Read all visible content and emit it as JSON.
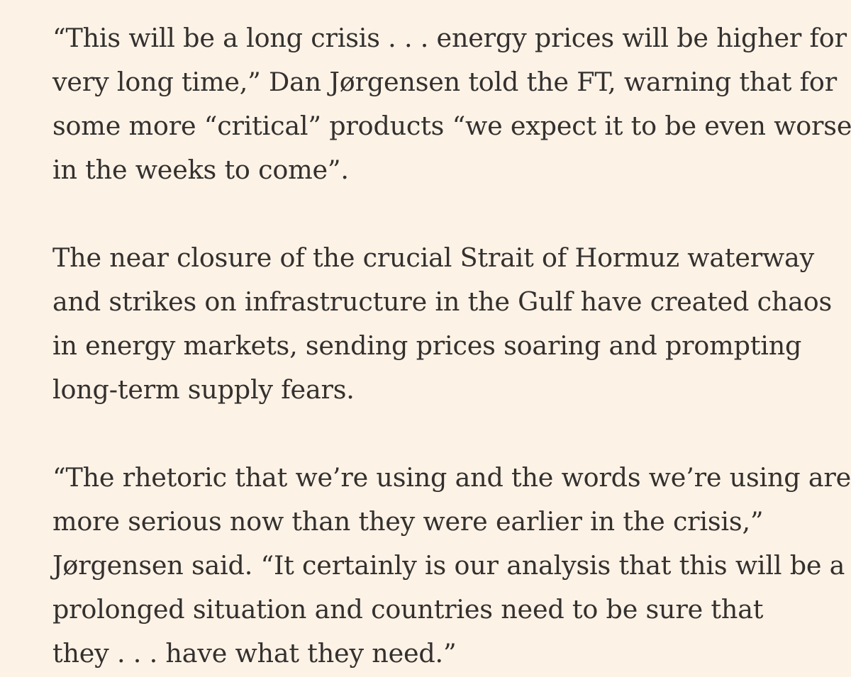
{
  "article": {
    "paragraphs": [
      {
        "lines": [
          "“This will be a long crisis . . . energy prices will be higher for a",
          "very long time,” Dan Jørgensen told the FT, warning that for",
          "some more “critical” products “we expect it to be even worse",
          "in the weeks to come”."
        ]
      },
      {
        "lines": [
          "The near closure of the crucial Strait of Hormuz waterway",
          "and strikes on infrastructure in the Gulf have created chaos",
          "in energy markets, sending prices soaring and prompting",
          "long-term supply fears."
        ]
      },
      {
        "lines": [
          "“The rhetoric that we’re using and the words we’re using are",
          "more serious now than they were earlier in the crisis,”",
          "Jørgensen said. “It certainly is our analysis that this will be a",
          "prolonged situation and countries need to be sure that",
          "they . . . have what they need.”"
        ]
      }
    ]
  },
  "colors": {
    "background": "#fcf2e6",
    "text": "#33302e"
  }
}
